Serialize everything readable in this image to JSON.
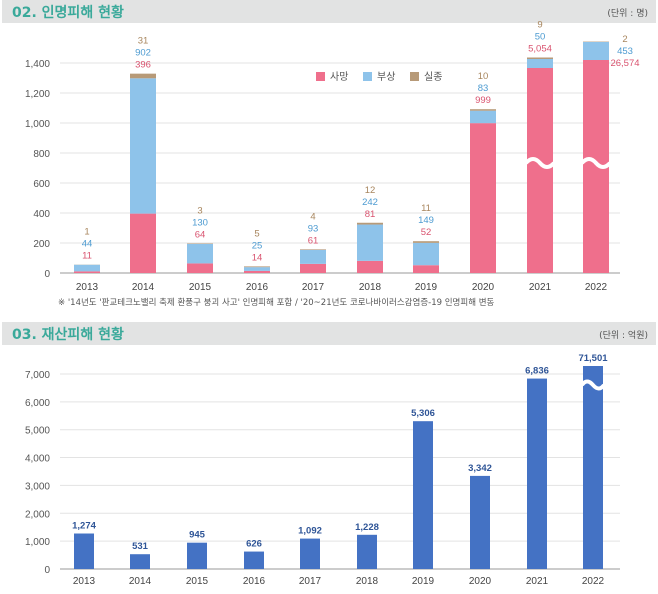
{
  "section1": {
    "title": "02. 인명피해 현황",
    "unit": "(단위 : 명)",
    "note": "※ '14년도 '판교테크노밸리 축제 환풍구 붕괴 사고' 인명피해 포함 / '20~21년도 코로나바이러스감염증-19 인명피해 변동"
  },
  "section2": {
    "title": "03. 재산피해 현황",
    "unit": "(단위 : 억원)"
  },
  "chart_data": [
    {
      "type": "bar",
      "stacked": true,
      "categories": [
        "2013",
        "2014",
        "2015",
        "2016",
        "2017",
        "2018",
        "2019",
        "2020",
        "2021",
        "2022"
      ],
      "series": [
        {
          "name": "사망",
          "color": "#ef6f8c",
          "values": [
            11,
            396,
            64,
            14,
            61,
            81,
            52,
            999,
            5054,
            26574
          ]
        },
        {
          "name": "부상",
          "color": "#8ec3ea",
          "values": [
            44,
            902,
            130,
            25,
            93,
            242,
            149,
            83,
            50,
            453
          ]
        },
        {
          "name": "실종",
          "color": "#b79a78",
          "values": [
            1,
            31,
            3,
            5,
            4,
            12,
            11,
            10,
            9,
            2
          ]
        }
      ],
      "yticks": [
        "0",
        "200",
        "400",
        "600",
        "800",
        "1,000",
        "1,200",
        "1,400"
      ],
      "ylim": [
        0,
        1500
      ],
      "axis_break": [
        "2021",
        "2022"
      ],
      "data_labels": {
        "사망": [
          "11",
          "396",
          "64",
          "14",
          "61",
          "81",
          "52",
          "999",
          "5,054",
          "26,574"
        ],
        "부상": [
          "44",
          "902",
          "130",
          "25",
          "93",
          "242",
          "149",
          "83",
          "50",
          "453"
        ],
        "실종": [
          "1",
          "31",
          "3",
          "5",
          "4",
          "12",
          "11",
          "10",
          "9",
          "2"
        ]
      },
      "legend": "top-center",
      "grid": true
    },
    {
      "type": "bar",
      "categories": [
        "2013",
        "2014",
        "2015",
        "2016",
        "2017",
        "2018",
        "2019",
        "2020",
        "2021",
        "2022"
      ],
      "values": [
        1274,
        531,
        945,
        626,
        1092,
        1228,
        5306,
        3342,
        6836,
        71501
      ],
      "data_labels": [
        "1,274",
        "531",
        "945",
        "626",
        "1,092",
        "1,228",
        "5,306",
        "3,342",
        "6,836",
        "71,501"
      ],
      "color": "#4472c4",
      "yticks": [
        "0",
        "1,000",
        "2,000",
        "3,000",
        "4,000",
        "5,000",
        "6,000",
        "7,000"
      ],
      "ylim": [
        0,
        7200
      ],
      "axis_break": [
        "2022"
      ],
      "grid": true
    }
  ]
}
